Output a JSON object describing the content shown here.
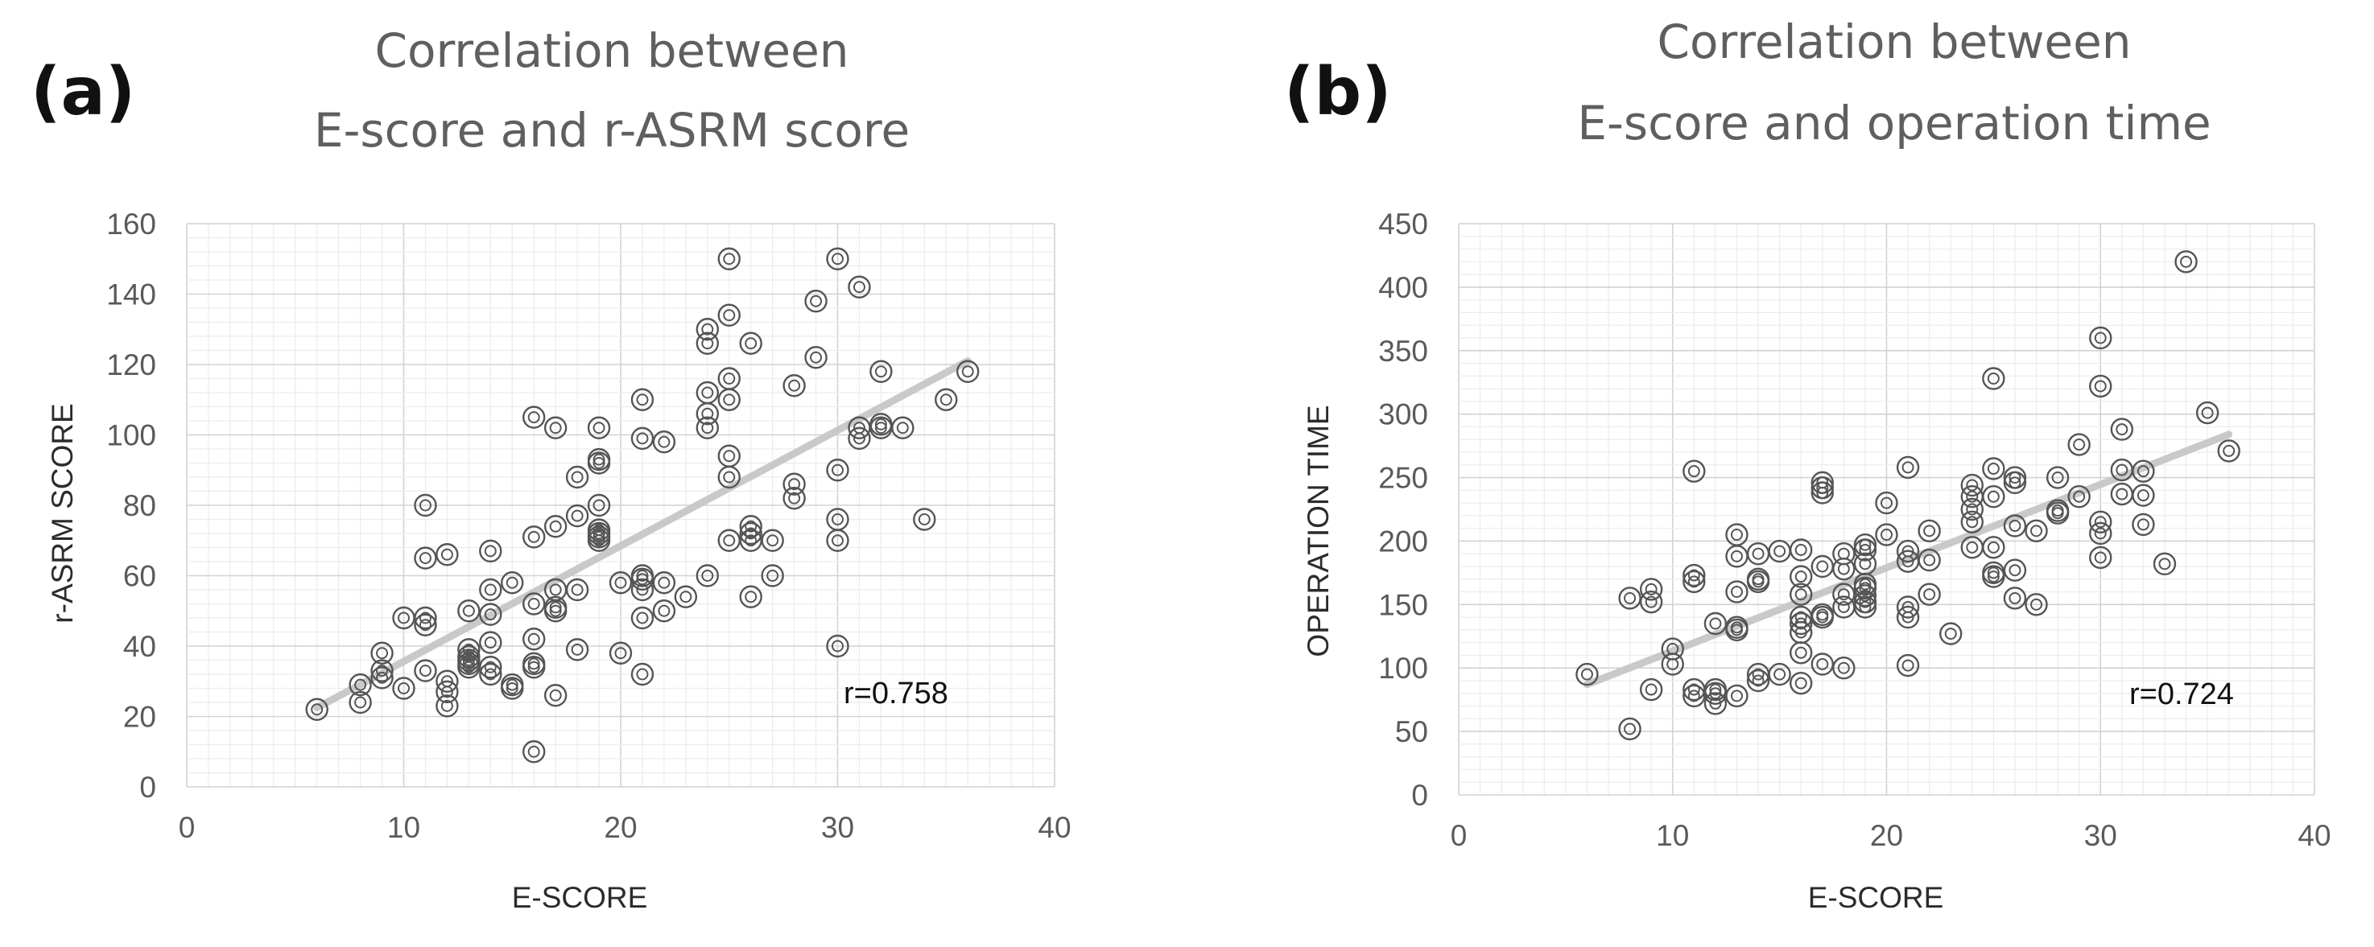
{
  "panels": [
    {
      "label": "(a)",
      "title_line1": "Correlation between",
      "title_line2": "E-score and r-ASRM score",
      "r_label": "r=0.758",
      "chart_data": {
        "type": "scatter",
        "title": "Correlation between E-score and r-ASRM score",
        "xlabel": "E-SCORE",
        "ylabel": "r-ASRM SCORE",
        "xlim": [
          0,
          40
        ],
        "ylim": [
          0,
          160
        ],
        "xticks": [
          0,
          10,
          20,
          30,
          40
        ],
        "yticks": [
          0,
          20,
          40,
          60,
          80,
          100,
          120,
          140,
          160
        ],
        "minor_x_step": 1,
        "minor_y_step": 4,
        "grid": true,
        "marker": "double-circle",
        "trendline": {
          "type": "linear",
          "from": [
            6,
            22.5
          ],
          "to": [
            36,
            121
          ]
        },
        "points": [
          [
            6,
            22
          ],
          [
            8,
            24
          ],
          [
            8,
            29
          ],
          [
            9,
            31
          ],
          [
            9,
            33
          ],
          [
            9,
            38
          ],
          [
            10,
            28
          ],
          [
            10,
            48
          ],
          [
            11,
            33
          ],
          [
            11,
            46
          ],
          [
            11,
            48
          ],
          [
            11,
            65
          ],
          [
            11,
            80
          ],
          [
            12,
            23
          ],
          [
            12,
            27
          ],
          [
            12,
            30
          ],
          [
            12,
            66
          ],
          [
            13,
            34
          ],
          [
            13,
            35
          ],
          [
            13,
            36
          ],
          [
            13,
            37
          ],
          [
            13,
            39
          ],
          [
            13,
            50
          ],
          [
            14,
            32
          ],
          [
            14,
            34
          ],
          [
            14,
            41
          ],
          [
            14,
            49
          ],
          [
            14,
            56
          ],
          [
            14,
            67
          ],
          [
            15,
            28
          ],
          [
            15,
            29
          ],
          [
            15,
            58
          ],
          [
            16,
            10
          ],
          [
            16,
            34
          ],
          [
            16,
            35
          ],
          [
            16,
            42
          ],
          [
            16,
            52
          ],
          [
            16,
            71
          ],
          [
            16,
            105
          ],
          [
            17,
            26
          ],
          [
            17,
            50
          ],
          [
            17,
            51
          ],
          [
            17,
            56
          ],
          [
            17,
            74
          ],
          [
            17,
            102
          ],
          [
            18,
            39
          ],
          [
            18,
            56
          ],
          [
            18,
            77
          ],
          [
            18,
            88
          ],
          [
            19,
            70
          ],
          [
            19,
            71
          ],
          [
            19,
            72
          ],
          [
            19,
            73
          ],
          [
            19,
            80
          ],
          [
            19,
            92
          ],
          [
            19,
            93
          ],
          [
            19,
            102
          ],
          [
            20,
            38
          ],
          [
            20,
            58
          ],
          [
            21,
            32
          ],
          [
            21,
            48
          ],
          [
            21,
            56
          ],
          [
            21,
            59
          ],
          [
            21,
            60
          ],
          [
            21,
            99
          ],
          [
            21,
            110
          ],
          [
            22,
            50
          ],
          [
            22,
            58
          ],
          [
            22,
            98
          ],
          [
            23,
            54
          ],
          [
            24,
            60
          ],
          [
            24,
            102
          ],
          [
            24,
            106
          ],
          [
            24,
            112
          ],
          [
            24,
            126
          ],
          [
            24,
            130
          ],
          [
            25,
            70
          ],
          [
            25,
            88
          ],
          [
            25,
            94
          ],
          [
            25,
            110
          ],
          [
            25,
            116
          ],
          [
            25,
            134
          ],
          [
            25,
            150
          ],
          [
            26,
            54
          ],
          [
            26,
            70
          ],
          [
            26,
            72
          ],
          [
            26,
            74
          ],
          [
            26,
            126
          ],
          [
            27,
            60
          ],
          [
            27,
            70
          ],
          [
            28,
            82
          ],
          [
            28,
            86
          ],
          [
            28,
            114
          ],
          [
            29,
            122
          ],
          [
            29,
            138
          ],
          [
            30,
            40
          ],
          [
            30,
            70
          ],
          [
            30,
            76
          ],
          [
            30,
            90
          ],
          [
            30,
            150
          ],
          [
            31,
            99
          ],
          [
            31,
            102
          ],
          [
            31,
            142
          ],
          [
            32,
            102
          ],
          [
            32,
            103
          ],
          [
            32,
            118
          ],
          [
            33,
            102
          ],
          [
            34,
            76
          ],
          [
            35,
            110
          ],
          [
            36,
            118
          ]
        ]
      }
    },
    {
      "label": "(b)",
      "title_line1": "Correlation between",
      "title_line2": "E-score and operation time",
      "r_label": "r=0.724",
      "chart_data": {
        "type": "scatter",
        "title": "Correlation between E-score and operation time",
        "xlabel": "E-SCORE",
        "ylabel": "OPERATION TIME",
        "xlim": [
          0,
          40
        ],
        "ylim": [
          0,
          450
        ],
        "xticks": [
          0,
          10,
          20,
          30,
          40
        ],
        "yticks": [
          0,
          50,
          100,
          150,
          200,
          250,
          300,
          350,
          400,
          450
        ],
        "minor_x_step": 1,
        "minor_y_step": 10,
        "grid": true,
        "marker": "double-circle",
        "trendline": {
          "type": "linear",
          "from": [
            6,
            87
          ],
          "to": [
            36,
            284
          ]
        },
        "points": [
          [
            6,
            95
          ],
          [
            8,
            52
          ],
          [
            8,
            155
          ],
          [
            9,
            83
          ],
          [
            9,
            152
          ],
          [
            9,
            162
          ],
          [
            10,
            103
          ],
          [
            10,
            115
          ],
          [
            11,
            78
          ],
          [
            11,
            83
          ],
          [
            11,
            168
          ],
          [
            11,
            173
          ],
          [
            11,
            255
          ],
          [
            12,
            72
          ],
          [
            12,
            80
          ],
          [
            12,
            83
          ],
          [
            12,
            135
          ],
          [
            13,
            78
          ],
          [
            13,
            130
          ],
          [
            13,
            132
          ],
          [
            13,
            160
          ],
          [
            13,
            188
          ],
          [
            13,
            205
          ],
          [
            14,
            90
          ],
          [
            14,
            95
          ],
          [
            14,
            168
          ],
          [
            14,
            170
          ],
          [
            14,
            190
          ],
          [
            15,
            95
          ],
          [
            15,
            192
          ],
          [
            16,
            88
          ],
          [
            16,
            112
          ],
          [
            16,
            128
          ],
          [
            16,
            135
          ],
          [
            16,
            140
          ],
          [
            16,
            158
          ],
          [
            16,
            172
          ],
          [
            16,
            193
          ],
          [
            17,
            103
          ],
          [
            17,
            140
          ],
          [
            17,
            142
          ],
          [
            17,
            180
          ],
          [
            17,
            238
          ],
          [
            17,
            242
          ],
          [
            17,
            246
          ],
          [
            18,
            100
          ],
          [
            18,
            148
          ],
          [
            18,
            158
          ],
          [
            18,
            178
          ],
          [
            18,
            190
          ],
          [
            19,
            148
          ],
          [
            19,
            152
          ],
          [
            19,
            157
          ],
          [
            19,
            163
          ],
          [
            19,
            166
          ],
          [
            19,
            182
          ],
          [
            19,
            193
          ],
          [
            19,
            197
          ],
          [
            20,
            205
          ],
          [
            20,
            230
          ],
          [
            21,
            102
          ],
          [
            21,
            140
          ],
          [
            21,
            148
          ],
          [
            21,
            184
          ],
          [
            21,
            192
          ],
          [
            21,
            258
          ],
          [
            22,
            158
          ],
          [
            22,
            185
          ],
          [
            22,
            208
          ],
          [
            23,
            127
          ],
          [
            24,
            195
          ],
          [
            24,
            215
          ],
          [
            24,
            225
          ],
          [
            24,
            235
          ],
          [
            24,
            244
          ],
          [
            25,
            172
          ],
          [
            25,
            175
          ],
          [
            25,
            195
          ],
          [
            25,
            235
          ],
          [
            25,
            257
          ],
          [
            25,
            328
          ],
          [
            26,
            155
          ],
          [
            26,
            177
          ],
          [
            26,
            212
          ],
          [
            26,
            246
          ],
          [
            26,
            250
          ],
          [
            27,
            150
          ],
          [
            27,
            208
          ],
          [
            28,
            222
          ],
          [
            28,
            224
          ],
          [
            28,
            250
          ],
          [
            29,
            235
          ],
          [
            29,
            276
          ],
          [
            30,
            187
          ],
          [
            30,
            206
          ],
          [
            30,
            215
          ],
          [
            30,
            322
          ],
          [
            30,
            360
          ],
          [
            31,
            237
          ],
          [
            31,
            256
          ],
          [
            31,
            288
          ],
          [
            32,
            213
          ],
          [
            32,
            236
          ],
          [
            32,
            255
          ],
          [
            33,
            182
          ],
          [
            34,
            420
          ],
          [
            35,
            301
          ],
          [
            36,
            271
          ]
        ]
      }
    }
  ]
}
